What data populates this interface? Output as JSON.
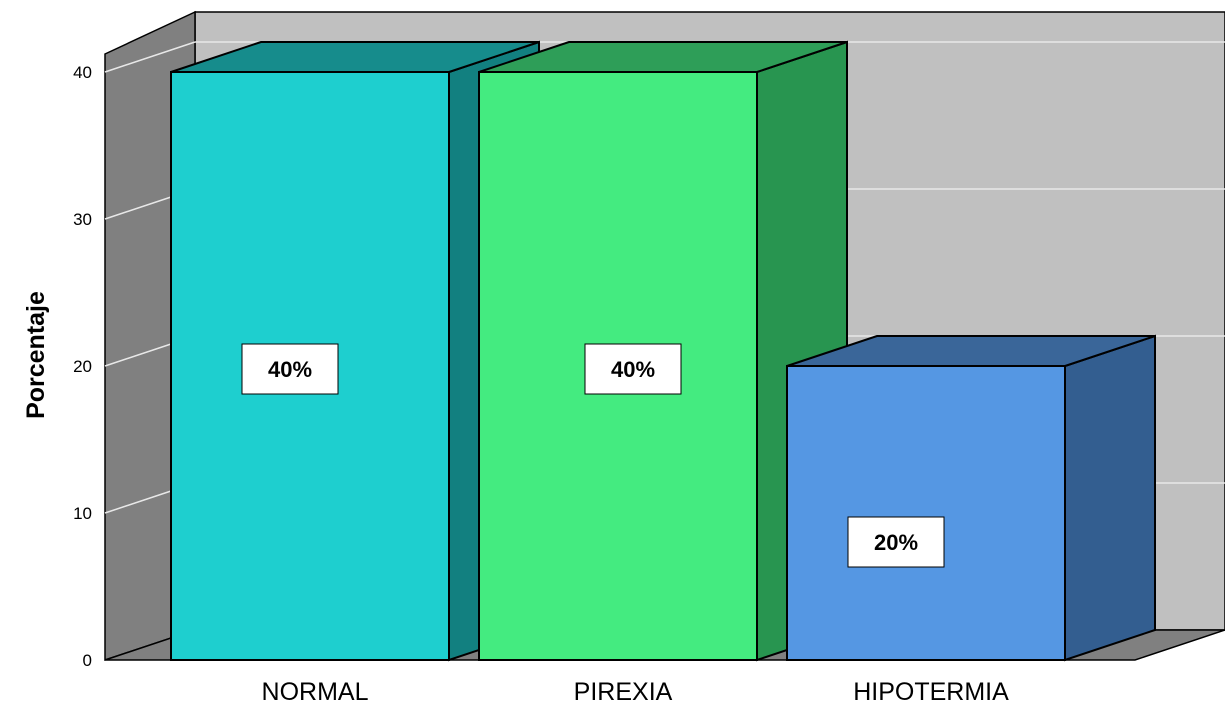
{
  "chart_data": {
    "type": "bar",
    "categories": [
      "NORMAL",
      "PIREXIA",
      "HIPOTERMIA"
    ],
    "values": [
      40,
      40,
      20
    ],
    "data_labels": [
      "40%",
      "40%",
      "20%"
    ],
    "ylabel": "Porcentaje",
    "xlabel": "",
    "ylim": [
      0,
      40
    ],
    "yticks": [
      0,
      10,
      20,
      30,
      40
    ],
    "grid": true,
    "three_d": true,
    "colors": {
      "bars": [
        {
          "front": "#1ecfcf",
          "side": "#128080",
          "top": "#168c8c"
        },
        {
          "front": "#44eb80",
          "side": "#289550",
          "top": "#2e9e58"
        },
        {
          "front": "#5597e3",
          "side": "#335e90",
          "top": "#3a6699"
        }
      ],
      "back_wall": "#c0c0c0",
      "side_wall": "#808080",
      "floor": "#808080",
      "gridline": "#e8e8e8",
      "outline": "#000000"
    }
  }
}
